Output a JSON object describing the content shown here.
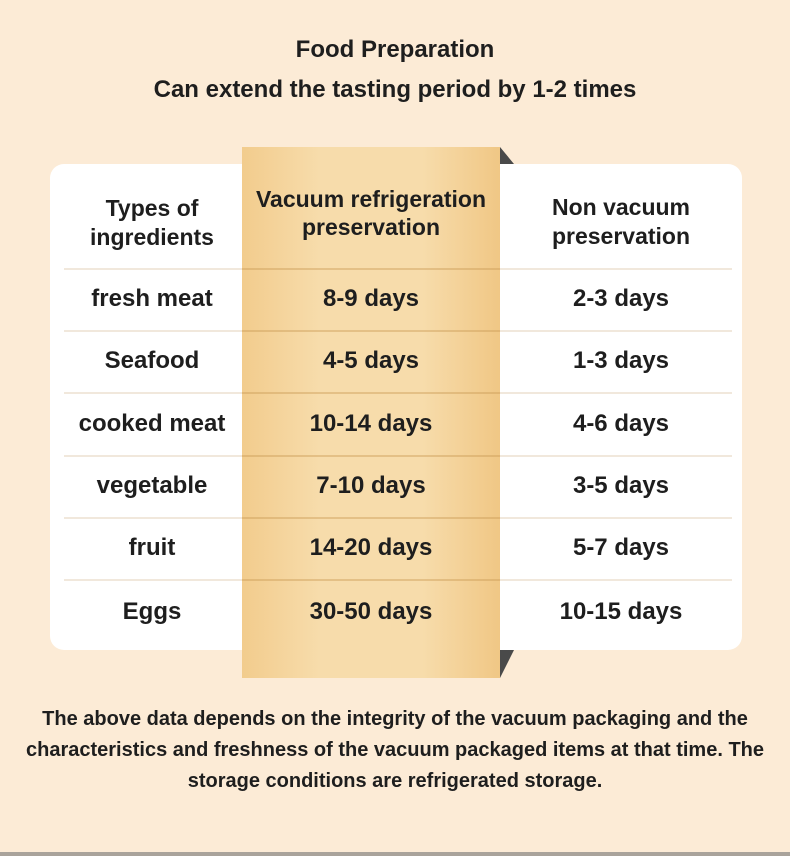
{
  "title": "Food Preparation",
  "subtitle": "Can extend the tasting period by 1-2 times",
  "table": {
    "headers": [
      "Types of ingredients",
      "Vacuum refrigeration preservation",
      "Non vacuum preservation"
    ],
    "rows": [
      [
        "fresh meat",
        "8-9 days",
        "2-3 days"
      ],
      [
        "Seafood",
        "4-5 days",
        "1-3 days"
      ],
      [
        "cooked meat",
        "10-14 days",
        "4-6 days"
      ],
      [
        "vegetable",
        "7-10 days",
        "3-5 days"
      ],
      [
        "fruit",
        "14-20 days",
        "5-7 days"
      ],
      [
        "Eggs",
        "30-50 days",
        "10-15 days"
      ]
    ]
  },
  "footnote": "The above data depends on the integrity of the vacuum packaging and the characteristics and freshness of the vacuum packaged items at that time. The storage conditions are refrigerated storage.",
  "colors": {
    "background": "#fcebd6",
    "highlight": "#f7dcab",
    "card": "#ffffff",
    "text": "#1e1e1e"
  }
}
